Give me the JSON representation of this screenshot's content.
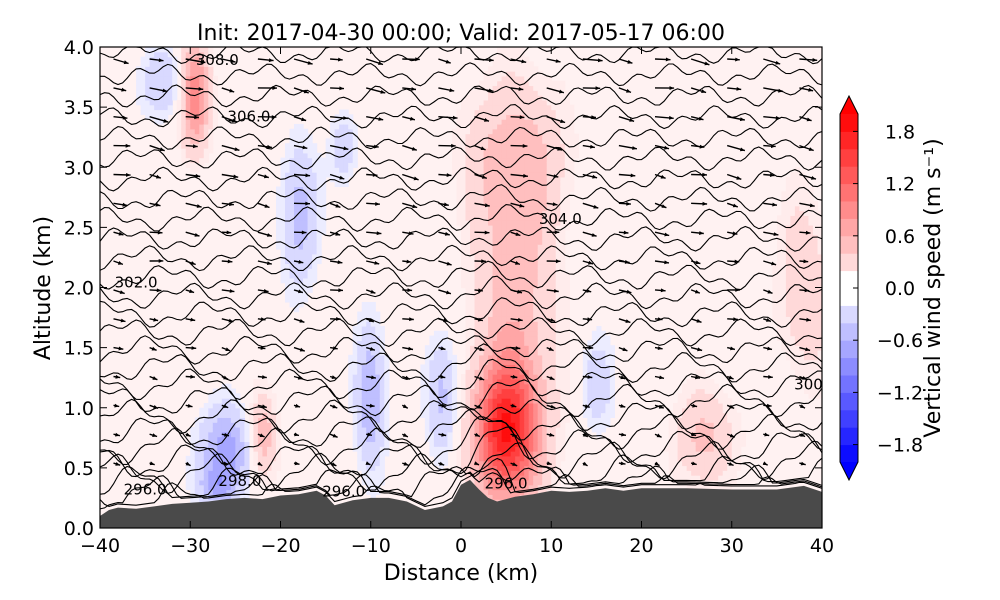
{
  "chart_data": {
    "type": "heatmap",
    "title": "Init: 2017-04-30 00:00; Valid: 2017-05-17 06:00",
    "xlabel": "Distance (km)",
    "ylabel": "Altitude (km)",
    "xlim": [
      -40,
      40
    ],
    "ylim": [
      0.0,
      4.0
    ],
    "xticks": [
      -40,
      -30,
      -20,
      -10,
      0,
      10,
      20,
      30,
      40
    ],
    "xtick_labels": [
      "−40",
      "−30",
      "−20",
      "−10",
      "0",
      "10",
      "20",
      "30",
      "40"
    ],
    "yticks": [
      0.0,
      0.5,
      1.0,
      1.5,
      2.0,
      2.5,
      3.0,
      3.5,
      4.0
    ],
    "ytick_labels": [
      "0.0",
      "0.5",
      "1.0",
      "1.5",
      "2.0",
      "2.5",
      "3.0",
      "3.5",
      "4.0"
    ],
    "colorbar": {
      "label": "Vertical wind speed (m s⁻¹)",
      "range": [
        -2.0,
        2.0
      ],
      "ticks": [
        1.8,
        1.2,
        0.6,
        0.0,
        -0.6,
        -1.2,
        -1.8
      ],
      "tick_labels": [
        "1.8",
        "1.2",
        "0.6",
        "0.0",
        "−0.6",
        "−1.2",
        "−1.8"
      ],
      "extend": "both",
      "colormap": "bwr"
    },
    "vertical_wind_features": [
      {
        "x": 5,
        "z": 0.8,
        "rx": 3.5,
        "rz": 0.55,
        "w": 1.6
      },
      {
        "x": 6,
        "z": 1.9,
        "rx": 4.5,
        "rz": 1.4,
        "w": 0.5
      },
      {
        "x": 6,
        "z": 3.1,
        "rx": 6.0,
        "rz": 0.6,
        "w": 0.35
      },
      {
        "x": -29.5,
        "z": 3.6,
        "rx": 1.6,
        "rz": 0.45,
        "w": 1.0
      },
      {
        "x": -22,
        "z": 0.75,
        "rx": 1.6,
        "rz": 0.35,
        "w": 0.6
      },
      {
        "x": 27,
        "z": 0.75,
        "rx": 3.5,
        "rz": 0.4,
        "w": 0.45
      },
      {
        "x": 38,
        "z": 2.0,
        "rx": 3.0,
        "rz": 0.8,
        "w": 0.35
      },
      {
        "x": -26,
        "z": 0.65,
        "rx": 3.0,
        "rz": 0.35,
        "w": -0.7
      },
      {
        "x": -10,
        "z": 1.1,
        "rx": 1.6,
        "rz": 0.6,
        "w": -0.6
      },
      {
        "x": -2,
        "z": 1.1,
        "rx": 1.8,
        "rz": 0.5,
        "w": -0.5
      },
      {
        "x": -18,
        "z": 2.6,
        "rx": 2.0,
        "rz": 0.6,
        "w": -0.5
      },
      {
        "x": -33,
        "z": 3.7,
        "rx": 3.0,
        "rz": 0.3,
        "w": -0.35
      },
      {
        "x": -27,
        "z": 0.35,
        "rx": 2.0,
        "rz": 0.15,
        "w": -0.5
      },
      {
        "x": 15,
        "z": 1.2,
        "rx": 2.0,
        "rz": 0.4,
        "w": -0.3
      },
      {
        "x": -13,
        "z": 3.15,
        "rx": 1.5,
        "rz": 0.3,
        "w": -0.35
      }
    ],
    "terrain": {
      "x": [
        -40,
        -39,
        -38,
        -36,
        -34,
        -32,
        -30,
        -28,
        -26,
        -24,
        -22,
        -20,
        -18,
        -16,
        -15,
        -14,
        -12,
        -10,
        -8,
        -6,
        -4,
        -2,
        -1,
        0,
        1,
        2,
        3,
        4,
        6,
        8,
        10,
        12,
        14,
        16,
        18,
        20,
        25,
        30,
        35,
        38,
        40
      ],
      "z": [
        0.1,
        0.15,
        0.17,
        0.16,
        0.18,
        0.2,
        0.21,
        0.22,
        0.24,
        0.25,
        0.24,
        0.27,
        0.28,
        0.31,
        0.27,
        0.19,
        0.23,
        0.25,
        0.25,
        0.22,
        0.15,
        0.18,
        0.22,
        0.36,
        0.4,
        0.32,
        0.25,
        0.22,
        0.26,
        0.28,
        0.31,
        0.3,
        0.31,
        0.33,
        0.31,
        0.33,
        0.33,
        0.32,
        0.32,
        0.35,
        0.3
      ]
    },
    "theta_contour_levels_K": [
      295.0,
      295.5,
      296.0,
      296.5,
      297.0,
      297.5,
      298.0,
      298.5,
      299.0,
      299.5,
      300.0,
      300.5,
      301.0,
      301.5,
      302.0,
      302.5,
      303.0,
      303.5,
      304.0,
      304.5,
      305.0,
      305.5,
      306.0,
      306.5,
      307.0,
      307.5,
      308.0
    ],
    "contour_labels": [
      {
        "text": "308.0",
        "x": -27,
        "z": 3.9
      },
      {
        "text": "306.0",
        "x": -23.5,
        "z": 3.43
      },
      {
        "text": "304.0",
        "x": 11,
        "z": 2.58
      },
      {
        "text": "302.0",
        "x": -36,
        "z": 2.05
      },
      {
        "text": "300",
        "x": 38.5,
        "z": 1.2
      },
      {
        "text": "298.0",
        "x": -24.5,
        "z": 0.4
      },
      {
        "text": "296.0",
        "x": -35,
        "z": 0.33
      },
      {
        "text": "296.0",
        "x": -13,
        "z": 0.31
      },
      {
        "text": "296.0",
        "x": 5,
        "z": 0.38
      }
    ],
    "wind_vectors": "horizontal flow mostly eastward (left-to-right) aloft, weaker and more variable near the surface"
  }
}
